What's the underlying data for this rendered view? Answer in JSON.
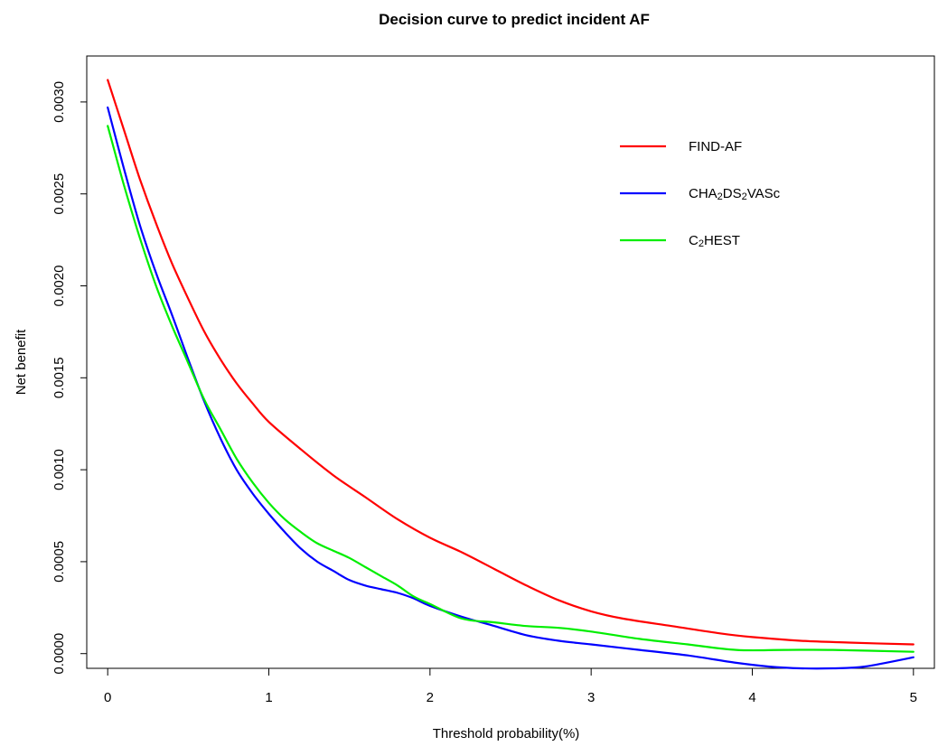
{
  "chart_data": {
    "type": "line",
    "title": "Decision curve to predict incident AF",
    "xlabel": "Threshold probability(%)",
    "ylabel": "Net benefit",
    "xlim": [
      -0.13,
      5.13
    ],
    "ylim": [
      -8e-05,
      0.00325
    ],
    "x_ticks": [
      0,
      1,
      2,
      3,
      4,
      5
    ],
    "x_tick_labels": [
      "0",
      "1",
      "2",
      "3",
      "4",
      "5"
    ],
    "y_ticks": [
      0.0,
      0.0005,
      0.001,
      0.0015,
      0.002,
      0.0025,
      0.003
    ],
    "y_tick_labels": [
      "0.0000",
      "0.0005",
      "0.0010",
      "0.0015",
      "0.0020",
      "0.0025",
      "0.0030"
    ],
    "grid": false,
    "legend_position": "top-right",
    "series": [
      {
        "name": "FIND-AF",
        "color": "#ff0000",
        "x": [
          0,
          0.1,
          0.2,
          0.3,
          0.4,
          0.5,
          0.6,
          0.7,
          0.8,
          0.9,
          1.0,
          1.2,
          1.4,
          1.6,
          1.8,
          2.0,
          2.2,
          2.4,
          2.6,
          2.8,
          3.0,
          3.2,
          3.5,
          3.8,
          4.0,
          4.3,
          4.6,
          5.0
        ],
        "y": [
          0.00312,
          0.00285,
          0.00258,
          0.00234,
          0.00212,
          0.00193,
          0.00175,
          0.0016,
          0.00147,
          0.00136,
          0.00126,
          0.00111,
          0.00097,
          0.00085,
          0.00073,
          0.00063,
          0.00055,
          0.00046,
          0.00037,
          0.00029,
          0.00023,
          0.00019,
          0.00015,
          0.00011,
          9e-05,
          7e-05,
          6e-05,
          5e-05
        ]
      },
      {
        "name": "CHA2DS2VASc",
        "color": "#0000ff",
        "x": [
          0,
          0.1,
          0.2,
          0.3,
          0.4,
          0.5,
          0.6,
          0.7,
          0.8,
          0.9,
          1.0,
          1.1,
          1.2,
          1.3,
          1.4,
          1.5,
          1.6,
          1.7,
          1.8,
          1.9,
          2.0,
          2.2,
          2.4,
          2.6,
          2.8,
          3.0,
          3.3,
          3.6,
          3.9,
          4.1,
          4.3,
          4.5,
          4.7,
          5.0
        ],
        "y": [
          0.00297,
          0.00264,
          0.00233,
          0.00207,
          0.00184,
          0.0016,
          0.00137,
          0.00117,
          0.001,
          0.00087,
          0.00076,
          0.00066,
          0.00057,
          0.0005,
          0.00045,
          0.0004,
          0.00037,
          0.00035,
          0.00033,
          0.0003,
          0.00026,
          0.0002,
          0.00015,
          0.0001,
          7e-05,
          5e-05,
          2e-05,
          -1e-05,
          -5e-05,
          -7e-05,
          -8e-05,
          -8e-05,
          -7e-05,
          -2e-05
        ]
      },
      {
        "name": "C2HEST",
        "color": "#00ee00",
        "x": [
          0,
          0.1,
          0.2,
          0.3,
          0.4,
          0.5,
          0.6,
          0.7,
          0.8,
          0.9,
          1.0,
          1.1,
          1.2,
          1.3,
          1.4,
          1.5,
          1.6,
          1.7,
          1.8,
          1.9,
          2.0,
          2.2,
          2.4,
          2.6,
          2.8,
          3.0,
          3.3,
          3.6,
          3.9,
          4.2,
          4.5,
          5.0
        ],
        "y": [
          0.00287,
          0.00255,
          0.00226,
          0.002,
          0.00178,
          0.00158,
          0.00138,
          0.00122,
          0.00106,
          0.00093,
          0.00082,
          0.00073,
          0.00066,
          0.0006,
          0.00056,
          0.00052,
          0.00047,
          0.00042,
          0.00037,
          0.00031,
          0.00027,
          0.00019,
          0.00017,
          0.00015,
          0.00014,
          0.00012,
          8e-05,
          5e-05,
          2e-05,
          2e-05,
          2e-05,
          1e-05
        ]
      }
    ],
    "legend": [
      {
        "color": "#ff0000",
        "parts": [
          {
            "text": "FIND-AF",
            "sub": false
          }
        ]
      },
      {
        "color": "#0000ff",
        "parts": [
          {
            "text": "CHA",
            "sub": false
          },
          {
            "text": "2",
            "sub": true
          },
          {
            "text": "DS",
            "sub": false
          },
          {
            "text": "2",
            "sub": true
          },
          {
            "text": "VASc",
            "sub": false
          }
        ]
      },
      {
        "color": "#00ee00",
        "parts": [
          {
            "text": "C",
            "sub": false
          },
          {
            "text": "2",
            "sub": true
          },
          {
            "text": "HEST",
            "sub": false
          }
        ]
      }
    ]
  }
}
